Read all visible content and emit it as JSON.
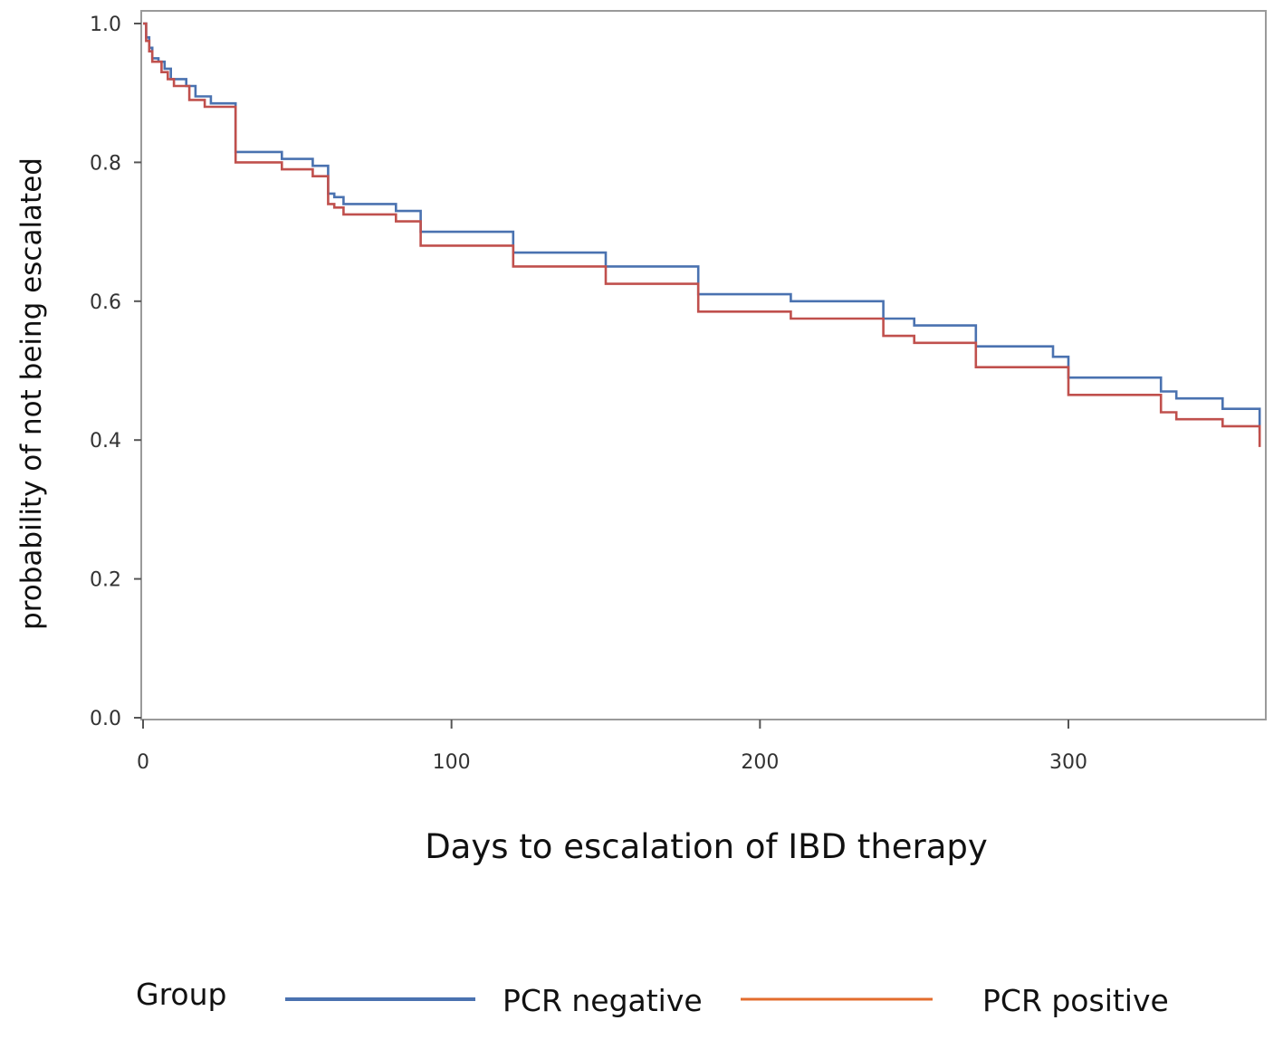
{
  "chart_data": {
    "type": "line",
    "step": true,
    "xlabel": "Days to escalation of IBD therapy",
    "ylabel": "probability of not being escalated",
    "xlim": [
      0,
      365
    ],
    "ylim": [
      0,
      1
    ],
    "x_ticks": [
      {
        "value": 0,
        "label": "0"
      },
      {
        "value": 100,
        "label": "100"
      },
      {
        "value": 200,
        "label": "200"
      },
      {
        "value": 300,
        "label": "300"
      }
    ],
    "y_ticks": [
      {
        "value": 0.0,
        "label": "0.0"
      },
      {
        "value": 0.2,
        "label": "0.2"
      },
      {
        "value": 0.4,
        "label": "0.4"
      },
      {
        "value": 0.6,
        "label": "0.6"
      },
      {
        "value": 0.8,
        "label": "0.8"
      },
      {
        "value": 1.0,
        "label": "1.0"
      }
    ],
    "legend": {
      "title": "Group",
      "placement": "bottom"
    },
    "series": [
      {
        "name": "PCR negative",
        "color": "#4a72b0",
        "x": [
          0,
          1,
          2,
          3,
          5,
          7,
          9,
          14,
          17,
          22,
          30,
          45,
          55,
          60,
          62,
          65,
          82,
          90,
          120,
          150,
          180,
          210,
          240,
          250,
          270,
          295,
          300,
          330,
          335,
          350,
          362,
          362
        ],
        "y": [
          1.0,
          0.98,
          0.965,
          0.95,
          0.945,
          0.935,
          0.92,
          0.91,
          0.895,
          0.885,
          0.815,
          0.805,
          0.795,
          0.755,
          0.75,
          0.74,
          0.73,
          0.7,
          0.67,
          0.65,
          0.61,
          0.6,
          0.575,
          0.565,
          0.535,
          0.52,
          0.49,
          0.47,
          0.46,
          0.445,
          0.445,
          0.41
        ]
      },
      {
        "name": "PCR positive",
        "color": "#c0504d",
        "x": [
          0,
          1,
          2,
          3,
          6,
          8,
          10,
          15,
          20,
          30,
          45,
          55,
          60,
          62,
          65,
          82,
          90,
          120,
          150,
          180,
          210,
          240,
          250,
          270,
          300,
          330,
          335,
          350,
          362,
          362
        ],
        "y": [
          1.0,
          0.975,
          0.96,
          0.945,
          0.93,
          0.92,
          0.91,
          0.89,
          0.88,
          0.8,
          0.79,
          0.78,
          0.74,
          0.735,
          0.725,
          0.715,
          0.68,
          0.65,
          0.625,
          0.585,
          0.575,
          0.55,
          0.54,
          0.505,
          0.465,
          0.44,
          0.43,
          0.42,
          0.42,
          0.39
        ]
      }
    ]
  }
}
